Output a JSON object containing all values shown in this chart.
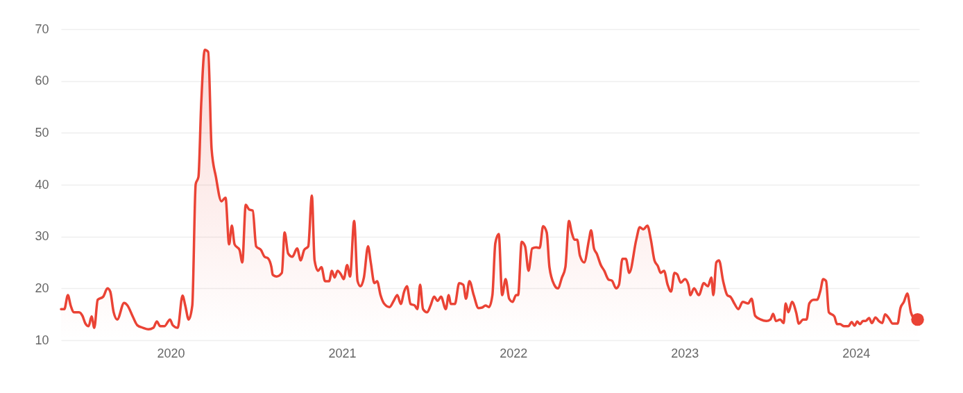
{
  "chart_data": {
    "type": "area",
    "xlim": [
      2019.36,
      2024.37
    ],
    "xticks": [
      2020,
      2021,
      2022,
      2023,
      2024
    ],
    "ylim": [
      10,
      70
    ],
    "yticks": [
      10,
      20,
      30,
      40,
      50,
      60,
      70
    ],
    "grid": "y",
    "x": [
      2019.36,
      2019.379,
      2019.4,
      2019.416,
      2019.436,
      2019.465,
      2019.485,
      2019.501,
      2019.521,
      2019.538,
      2019.554,
      2019.574,
      2019.606,
      2019.631,
      2019.647,
      2019.667,
      2019.688,
      2019.728,
      2019.748,
      2019.777,
      2019.805,
      2019.838,
      2019.87,
      2019.899,
      2019.919,
      2019.939,
      2019.963,
      2019.996,
      2020.012,
      2020.041,
      2020.069,
      2020.085,
      2020.105,
      2020.126,
      2020.146,
      2020.162,
      2020.178,
      2020.199,
      2020.219,
      2020.239,
      2020.264,
      2020.296,
      2020.32,
      2020.341,
      2020.357,
      2020.373,
      2020.402,
      2020.418,
      2020.438,
      2020.458,
      2020.479,
      2020.499,
      2020.527,
      2020.548,
      2020.568,
      2020.588,
      2020.596,
      2020.617,
      2020.649,
      2020.665,
      2020.686,
      2020.71,
      2020.738,
      2020.759,
      2020.779,
      2020.803,
      2020.824,
      2020.84,
      2020.86,
      2020.88,
      2020.901,
      2020.925,
      2020.941,
      2020.957,
      2020.974,
      2020.994,
      2021.01,
      2021.03,
      2021.047,
      2021.071,
      2021.091,
      2021.108,
      2021.128,
      2021.152,
      2021.168,
      2021.189,
      2021.205,
      2021.225,
      2021.245,
      2021.278,
      2021.302,
      2021.323,
      2021.343,
      2021.363,
      2021.379,
      2021.4,
      2021.424,
      2021.44,
      2021.456,
      2021.473,
      2021.497,
      2021.517,
      2021.538,
      2021.558,
      2021.578,
      2021.606,
      2021.623,
      2021.635,
      2021.659,
      2021.684,
      2021.708,
      2021.724,
      2021.744,
      2021.769,
      2021.797,
      2021.817,
      2021.838,
      2021.858,
      2021.878,
      2021.895,
      2021.915,
      2021.935,
      2021.955,
      2021.976,
      2021.996,
      2022.016,
      2022.028,
      2022.049,
      2022.069,
      2022.089,
      2022.11,
      2022.134,
      2022.154,
      2022.174,
      2022.195,
      2022.211,
      2022.239,
      2022.26,
      2022.284,
      2022.304,
      2022.325,
      2022.341,
      2022.357,
      2022.373,
      2022.389,
      2022.414,
      2022.442,
      2022.454,
      2022.471,
      2022.487,
      2022.511,
      2022.531,
      2022.556,
      2022.576,
      2022.6,
      2022.617,
      2022.637,
      2022.657,
      2022.677,
      2022.718,
      2022.738,
      2022.759,
      2022.783,
      2022.803,
      2022.824,
      2022.844,
      2022.86,
      2022.88,
      2022.901,
      2022.921,
      2022.941,
      2022.957,
      2022.978,
      2023.002,
      2023.022,
      2023.034,
      2023.055,
      2023.083,
      2023.112,
      2023.136,
      2023.156,
      2023.168,
      2023.185,
      2023.201,
      2023.225,
      2023.249,
      2023.27,
      2023.29,
      2023.314,
      2023.339,
      2023.371,
      2023.391,
      2023.412,
      2023.444,
      2023.477,
      2023.501,
      2023.517,
      2023.533,
      2023.558,
      2023.578,
      2023.59,
      2023.606,
      2023.627,
      2023.651,
      2023.667,
      2023.692,
      2023.712,
      2023.728,
      2023.753,
      2023.773,
      2023.793,
      2023.809,
      2023.826,
      2023.842,
      2023.874,
      2023.89,
      2023.907,
      2023.931,
      2023.955,
      2023.976,
      2023.992,
      2024.008,
      2024.024,
      2024.041,
      2024.057,
      2024.077,
      2024.093,
      2024.114,
      2024.134,
      2024.154,
      2024.17,
      2024.191,
      2024.215,
      2024.243,
      2024.26,
      2024.28,
      2024.3,
      2024.321,
      2024.341,
      2024.36
    ],
    "series": [
      {
        "color": "#ea4335",
        "values": [
          16.0,
          16.0,
          18.7,
          16.7,
          15.4,
          15.4,
          14.7,
          13.3,
          12.7,
          14.6,
          12.4,
          17.8,
          18.4,
          20.0,
          19.4,
          15.4,
          14.0,
          17.2,
          16.7,
          14.7,
          12.9,
          12.4,
          12.1,
          12.4,
          13.6,
          12.7,
          12.7,
          14.0,
          12.9,
          12.4,
          18.6,
          16.7,
          14.0,
          16.7,
          40.1,
          41.5,
          55.5,
          66.0,
          65.6,
          46.8,
          41.5,
          36.8,
          37.5,
          28.5,
          32.1,
          28.5,
          27.4,
          25.0,
          36.1,
          35.2,
          35.0,
          28.1,
          27.4,
          26.1,
          25.8,
          24.1,
          22.6,
          22.3,
          23.0,
          30.8,
          26.7,
          26.1,
          27.7,
          25.4,
          27.4,
          28.1,
          37.9,
          25.4,
          23.4,
          24.1,
          21.4,
          21.4,
          23.4,
          22.1,
          23.4,
          22.7,
          21.8,
          24.5,
          22.3,
          33.0,
          21.4,
          20.4,
          22.1,
          28.1,
          25.0,
          21.0,
          21.4,
          18.7,
          17.1,
          16.4,
          17.6,
          18.7,
          17.0,
          19.4,
          20.4,
          17.0,
          16.7,
          16.0,
          20.7,
          16.0,
          15.4,
          16.7,
          18.4,
          17.6,
          18.4,
          16.0,
          18.7,
          17.0,
          17.0,
          21.0,
          20.7,
          18.0,
          21.4,
          18.7,
          16.2,
          16.3,
          16.7,
          16.4,
          18.7,
          28.7,
          30.5,
          18.7,
          21.8,
          18.0,
          17.4,
          18.7,
          18.7,
          29.0,
          28.1,
          23.4,
          27.7,
          27.9,
          27.8,
          32.0,
          30.8,
          24.1,
          20.7,
          20.0,
          22.1,
          24.1,
          33.0,
          30.8,
          29.4,
          29.4,
          26.3,
          25.0,
          29.4,
          31.2,
          27.7,
          26.7,
          24.5,
          23.4,
          21.7,
          21.5,
          20.0,
          20.7,
          25.7,
          25.7,
          23.0,
          29.4,
          31.8,
          31.4,
          32.1,
          29.4,
          25.4,
          24.3,
          23.0,
          23.4,
          20.7,
          19.4,
          23.0,
          22.7,
          21.1,
          21.8,
          20.7,
          18.7,
          20.0,
          18.7,
          21.0,
          20.4,
          22.1,
          18.7,
          25.0,
          25.4,
          21.4,
          18.7,
          18.3,
          17.1,
          16.0,
          17.4,
          17.1,
          18.0,
          14.7,
          14.0,
          13.7,
          14.0,
          15.1,
          13.7,
          14.0,
          13.3,
          17.1,
          15.4,
          17.4,
          15.4,
          13.2,
          14.0,
          14.0,
          17.1,
          17.8,
          17.8,
          19.6,
          21.8,
          21.4,
          15.4,
          14.6,
          13.1,
          13.1,
          12.7,
          12.7,
          13.5,
          12.8,
          13.6,
          13.1,
          13.7,
          13.7,
          14.3,
          13.3,
          14.4,
          13.7,
          13.3,
          15.0,
          14.3,
          13.2,
          13.2,
          16.2,
          17.4,
          19.0,
          15.4,
          14.0,
          13.3
        ]
      },
      {
        "type": "scatter",
        "color": "#ea4335",
        "x": [
          2024.36
        ],
        "values": [
          14.0
        ]
      }
    ]
  }
}
